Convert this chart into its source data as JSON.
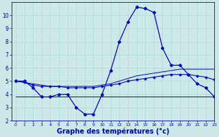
{
  "line1": {
    "x": [
      0,
      1,
      2,
      3,
      4,
      5,
      6,
      7,
      8,
      9,
      10,
      11,
      12,
      13,
      14,
      15,
      16,
      17,
      18,
      19,
      20,
      21,
      22,
      23
    ],
    "y": [
      5.0,
      5.0,
      4.5,
      3.8,
      3.8,
      4.0,
      4.0,
      3.0,
      2.5,
      2.5,
      4.0,
      5.8,
      8.0,
      9.5,
      10.6,
      10.5,
      10.2,
      7.5,
      6.2,
      6.2,
      5.5,
      4.8,
      4.5,
      3.8
    ],
    "color": "#0000cc",
    "linewidth": 0.9,
    "marker": "D",
    "markersize": 2.0
  },
  "line2": {
    "x": [
      0,
      1,
      2,
      3,
      4,
      5,
      6,
      7,
      8,
      9,
      10,
      11,
      12,
      13,
      14,
      15,
      16,
      17,
      18,
      19,
      20,
      21,
      22,
      23
    ],
    "y": [
      5.0,
      4.9,
      4.7,
      4.6,
      4.6,
      4.6,
      4.5,
      4.5,
      4.5,
      4.5,
      4.6,
      4.7,
      4.8,
      5.0,
      5.1,
      5.2,
      5.3,
      5.4,
      5.5,
      5.5,
      5.5,
      5.4,
      5.3,
      5.1
    ],
    "color": "#0000cc",
    "linewidth": 0.8,
    "marker": "D",
    "markersize": 1.5
  },
  "line3": {
    "x": [
      0,
      1,
      2,
      3,
      4,
      5,
      6,
      7,
      8,
      9,
      10,
      11,
      12,
      13,
      14,
      15,
      16,
      17,
      18,
      19,
      20,
      21,
      22,
      23
    ],
    "y": [
      5.0,
      4.9,
      4.8,
      4.7,
      4.6,
      4.6,
      4.6,
      4.6,
      4.6,
      4.6,
      4.7,
      4.8,
      5.0,
      5.2,
      5.4,
      5.5,
      5.6,
      5.7,
      5.8,
      5.9,
      5.9,
      5.9,
      5.9,
      5.9
    ],
    "color": "#0000cc",
    "linewidth": 0.7,
    "marker": null,
    "markersize": 0
  },
  "line4": {
    "x": [
      0,
      23
    ],
    "y": [
      3.8,
      3.8
    ],
    "color": "#0000cc",
    "linewidth": 0.7,
    "marker": null,
    "markersize": 0
  },
  "xlabel": "Graphe des températures (°c)",
  "xlabel_color": "#0000cc",
  "xlabel_fontsize": 7,
  "xlim": [
    -0.5,
    23
  ],
  "ylim": [
    2,
    11
  ],
  "yticks": [
    2,
    3,
    4,
    5,
    6,
    7,
    8,
    9,
    10
  ],
  "xticks": [
    0,
    1,
    2,
    3,
    4,
    5,
    6,
    7,
    8,
    9,
    10,
    11,
    12,
    13,
    14,
    15,
    16,
    17,
    18,
    19,
    20,
    21,
    22,
    23
  ],
  "bg_color": "#cce8e8",
  "grid_color": "#b0d8d8",
  "tick_color": "#0000cc",
  "axis_color": "#0000cc"
}
